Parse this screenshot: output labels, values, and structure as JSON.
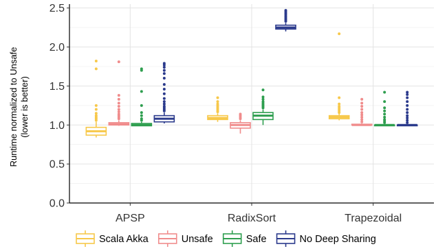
{
  "chart_data": {
    "type": "box",
    "categories": [
      "APSP",
      "RadixSort",
      "Trapezoidal"
    ],
    "ylabel_line1": "Runtime normalized to Unsafe",
    "ylabel_line2": "(lower is better)",
    "ylim": [
      0,
      2.55
    ],
    "yticks": [
      "0.0",
      "0.5",
      "1.0",
      "1.5",
      "2.0",
      "2.5"
    ],
    "ytick_values": [
      0.0,
      0.5,
      1.0,
      1.5,
      2.0,
      2.5
    ],
    "grid": true,
    "legend_position": "bottom",
    "series": [
      {
        "name": "Scala Akka",
        "color": "#F7C84A",
        "boxes": [
          {
            "min": 0.84,
            "q1": 0.87,
            "median": 0.92,
            "q3": 0.97,
            "max": 1.04,
            "outliers": [
              1.06,
              1.08,
              1.1,
              1.12,
              1.15,
              1.2,
              1.25,
              1.72,
              1.82
            ]
          },
          {
            "min": 1.04,
            "q1": 1.07,
            "median": 1.09,
            "q3": 1.12,
            "max": 1.15,
            "outliers": [
              1.17,
              1.19,
              1.21,
              1.23,
              1.25,
              1.27,
              1.3,
              1.35
            ]
          },
          {
            "min": 1.06,
            "q1": 1.08,
            "median": 1.1,
            "q3": 1.12,
            "max": 1.15,
            "outliers": [
              1.16,
              1.18,
              1.2,
              1.22,
              1.24,
              1.27,
              1.35,
              2.17
            ]
          }
        ]
      },
      {
        "name": "Unsafe",
        "color": "#F08C8C",
        "boxes": [
          {
            "min": 0.99,
            "q1": 1.0,
            "median": 1.01,
            "q3": 1.03,
            "max": 1.06,
            "outliers": [
              1.08,
              1.1,
              1.12,
              1.14,
              1.17,
              1.2,
              1.24,
              1.28,
              1.33,
              1.38,
              1.81
            ]
          },
          {
            "min": 0.89,
            "q1": 0.96,
            "median": 1.0,
            "q3": 1.03,
            "max": 1.06,
            "outliers": [
              1.08,
              1.1,
              1.12,
              1.14
            ]
          },
          {
            "min": 0.99,
            "q1": 1.0,
            "median": 1.0,
            "q3": 1.01,
            "max": 1.02,
            "outliers": [
              1.04,
              1.07,
              1.1,
              1.13,
              1.16,
              1.2,
              1.24,
              1.28,
              1.33
            ]
          }
        ]
      },
      {
        "name": "Safe",
        "color": "#2E9E4F",
        "boxes": [
          {
            "min": 0.99,
            "q1": 0.99,
            "median": 1.0,
            "q3": 1.02,
            "max": 1.04,
            "outliers": [
              1.06,
              1.08,
              1.12,
              1.16,
              1.25,
              1.43,
              1.7,
              1.72
            ]
          },
          {
            "min": 1.0,
            "q1": 1.07,
            "median": 1.12,
            "q3": 1.16,
            "max": 1.2,
            "outliers": [
              1.22,
              1.24,
              1.26,
              1.28,
              1.3,
              1.33,
              1.36,
              1.45
            ]
          },
          {
            "min": 0.99,
            "q1": 0.99,
            "median": 1.0,
            "q3": 1.0,
            "max": 1.01,
            "outliers": [
              1.03,
              1.05,
              1.07,
              1.1,
              1.14,
              1.18,
              1.22,
              1.3,
              1.42
            ]
          }
        ]
      },
      {
        "name": "No Deep Sharing",
        "color": "#2B3A8C",
        "boxes": [
          {
            "min": 1.02,
            "q1": 1.04,
            "median": 1.08,
            "q3": 1.12,
            "max": 1.16,
            "outliers": [
              1.18,
              1.2,
              1.22,
              1.24,
              1.27,
              1.3,
              1.34,
              1.4,
              1.46,
              1.52,
              1.6,
              1.66,
              1.7,
              1.74,
              1.77,
              1.79
            ]
          },
          {
            "min": 2.2,
            "q1": 2.23,
            "median": 2.25,
            "q3": 2.28,
            "max": 2.31,
            "outliers": [
              2.33,
              2.35,
              2.37,
              2.39,
              2.41,
              2.43,
              2.45,
              2.47
            ]
          },
          {
            "min": 0.99,
            "q1": 0.99,
            "median": 1.0,
            "q3": 1.0,
            "max": 1.01,
            "outliers": [
              1.03,
              1.06,
              1.09,
              1.12,
              1.16,
              1.2,
              1.25,
              1.3,
              1.35,
              1.39,
              1.42
            ]
          }
        ]
      }
    ]
  }
}
